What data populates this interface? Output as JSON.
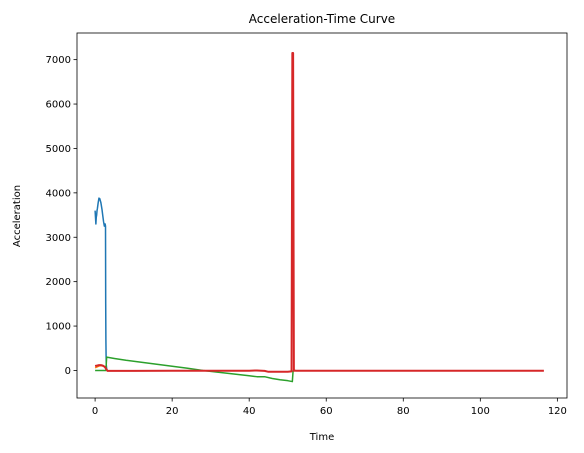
{
  "chart_data": {
    "type": "line",
    "title": "Acceleration-Time Curve",
    "xlabel": "Time",
    "ylabel": "Acceleration",
    "xlim": [
      -4.7,
      122.5
    ],
    "ylim": [
      -620,
      7600
    ],
    "xticks": [
      0,
      20,
      40,
      60,
      80,
      100,
      120
    ],
    "yticks": [
      0,
      1000,
      2000,
      3000,
      4000,
      5000,
      6000,
      7000
    ],
    "grid": false,
    "legend": "none",
    "series": [
      {
        "color": "#1f77b4",
        "x": [
          0,
          0.1,
          0.2,
          0.3,
          0.4,
          0.5,
          0.6,
          0.8,
          1.0,
          1.2,
          1.5,
          1.8,
          2.0,
          2.2,
          2.4,
          2.6,
          2.7,
          2.75,
          2.8,
          2.85,
          2.9,
          3.0,
          3.1
        ],
        "y": [
          3600,
          3450,
          3300,
          3450,
          3500,
          3600,
          3650,
          3780,
          3880,
          3870,
          3780,
          3620,
          3480,
          3350,
          3250,
          3300,
          3250,
          1500,
          700,
          350,
          120,
          40,
          0
        ]
      },
      {
        "color": "#ff7f0e",
        "x": [
          0,
          0.5,
          1.0,
          1.5,
          2.0,
          2.5,
          3.0
        ],
        "y": [
          60,
          80,
          100,
          110,
          100,
          90,
          80
        ]
      },
      {
        "color": "#2ca02c",
        "x": [
          0,
          1.0,
          2.0,
          2.8,
          3.0,
          5,
          8,
          12,
          16,
          20,
          24,
          28,
          32,
          36,
          40,
          42,
          44,
          46,
          48,
          50,
          51.2,
          51.4
        ],
        "y": [
          0,
          0,
          0,
          0,
          300,
          270,
          230,
          185,
          140,
          95,
          50,
          0,
          -40,
          -80,
          -120,
          -140,
          -140,
          -180,
          -210,
          -230,
          -250,
          0
        ]
      },
      {
        "color": "#d62728",
        "x": [
          0,
          0.5,
          1.0,
          1.5,
          2.0,
          2.5,
          3.0,
          3.2,
          10,
          20,
          30,
          40,
          42,
          44,
          45,
          50,
          51.0,
          51.2,
          51.4,
          51.6,
          51.8,
          52,
          60,
          80,
          100,
          116.5
        ],
        "y": [
          100,
          110,
          120,
          120,
          110,
          80,
          20,
          -10,
          -10,
          -5,
          -5,
          -5,
          0,
          -10,
          -30,
          -30,
          -20,
          7150,
          7150,
          -10,
          0,
          -5,
          -5,
          -5,
          -5,
          -5
        ]
      }
    ]
  }
}
